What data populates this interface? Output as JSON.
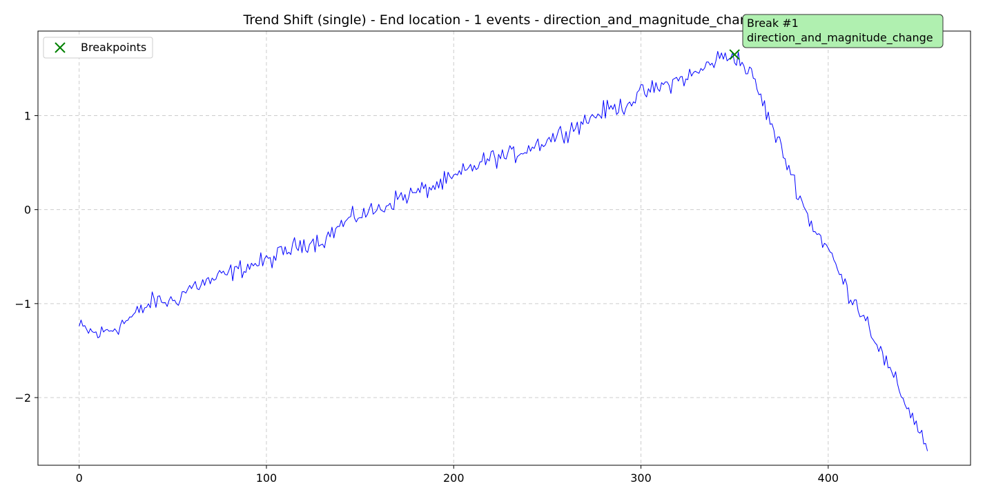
{
  "chart_data": {
    "type": "line",
    "title": "Trend Shift (single) - End location - 1 events - direction_and_magnitude_change",
    "xlabel": "",
    "ylabel": "",
    "xlim": [
      -22,
      476
    ],
    "ylim": [
      -2.72,
      1.9
    ],
    "x_ticks": [
      0,
      100,
      200,
      300,
      400
    ],
    "y_ticks": [
      -2,
      -1,
      0,
      1
    ],
    "x_tick_labels": [
      "0",
      "100",
      "200",
      "300",
      "400"
    ],
    "y_tick_labels": [
      "−2",
      "−1",
      "0",
      "1"
    ],
    "grid": true,
    "legend_position": "top-left",
    "series": [
      {
        "kind": "line",
        "color": "#0000ff",
        "n_points": 453,
        "anchors": [
          [
            0,
            -1.25
          ],
          [
            10,
            -1.33
          ],
          [
            20,
            -1.25
          ],
          [
            30,
            -1.12
          ],
          [
            40,
            -0.97
          ],
          [
            50,
            -0.98
          ],
          [
            60,
            -0.82
          ],
          [
            70,
            -0.76
          ],
          [
            80,
            -0.68
          ],
          [
            90,
            -0.6
          ],
          [
            100,
            -0.55
          ],
          [
            110,
            -0.45
          ],
          [
            120,
            -0.35
          ],
          [
            130,
            -0.33
          ],
          [
            140,
            -0.16
          ],
          [
            150,
            -0.05
          ],
          [
            160,
            0.0
          ],
          [
            170,
            0.12
          ],
          [
            180,
            0.18
          ],
          [
            190,
            0.25
          ],
          [
            200,
            0.33
          ],
          [
            210,
            0.45
          ],
          [
            220,
            0.55
          ],
          [
            230,
            0.57
          ],
          [
            240,
            0.66
          ],
          [
            250,
            0.74
          ],
          [
            260,
            0.84
          ],
          [
            270,
            0.94
          ],
          [
            280,
            1.05
          ],
          [
            290,
            1.1
          ],
          [
            300,
            1.23
          ],
          [
            310,
            1.3
          ],
          [
            320,
            1.38
          ],
          [
            330,
            1.45
          ],
          [
            340,
            1.6
          ],
          [
            350,
            1.65
          ],
          [
            360,
            1.4
          ],
          [
            370,
            0.88
          ],
          [
            380,
            0.4
          ],
          [
            390,
            -0.12
          ],
          [
            400,
            -0.42
          ],
          [
            410,
            -0.85
          ],
          [
            420,
            -1.15
          ],
          [
            430,
            -1.6
          ],
          [
            440,
            -2.0
          ],
          [
            450,
            -2.4
          ],
          [
            453,
            -2.52
          ]
        ],
        "noise_amplitude": 0.07
      }
    ],
    "breakpoints": {
      "legend_label": "Breakpoints",
      "marker": "x",
      "color": "#008000",
      "points": [
        {
          "x": 350,
          "y": 1.65
        }
      ]
    },
    "annotations": [
      {
        "line1": "Break #1",
        "line2": "direction_and_magnitude_change",
        "box_color": "#b0f0b0",
        "x": 350,
        "y": 1.65
      }
    ]
  }
}
